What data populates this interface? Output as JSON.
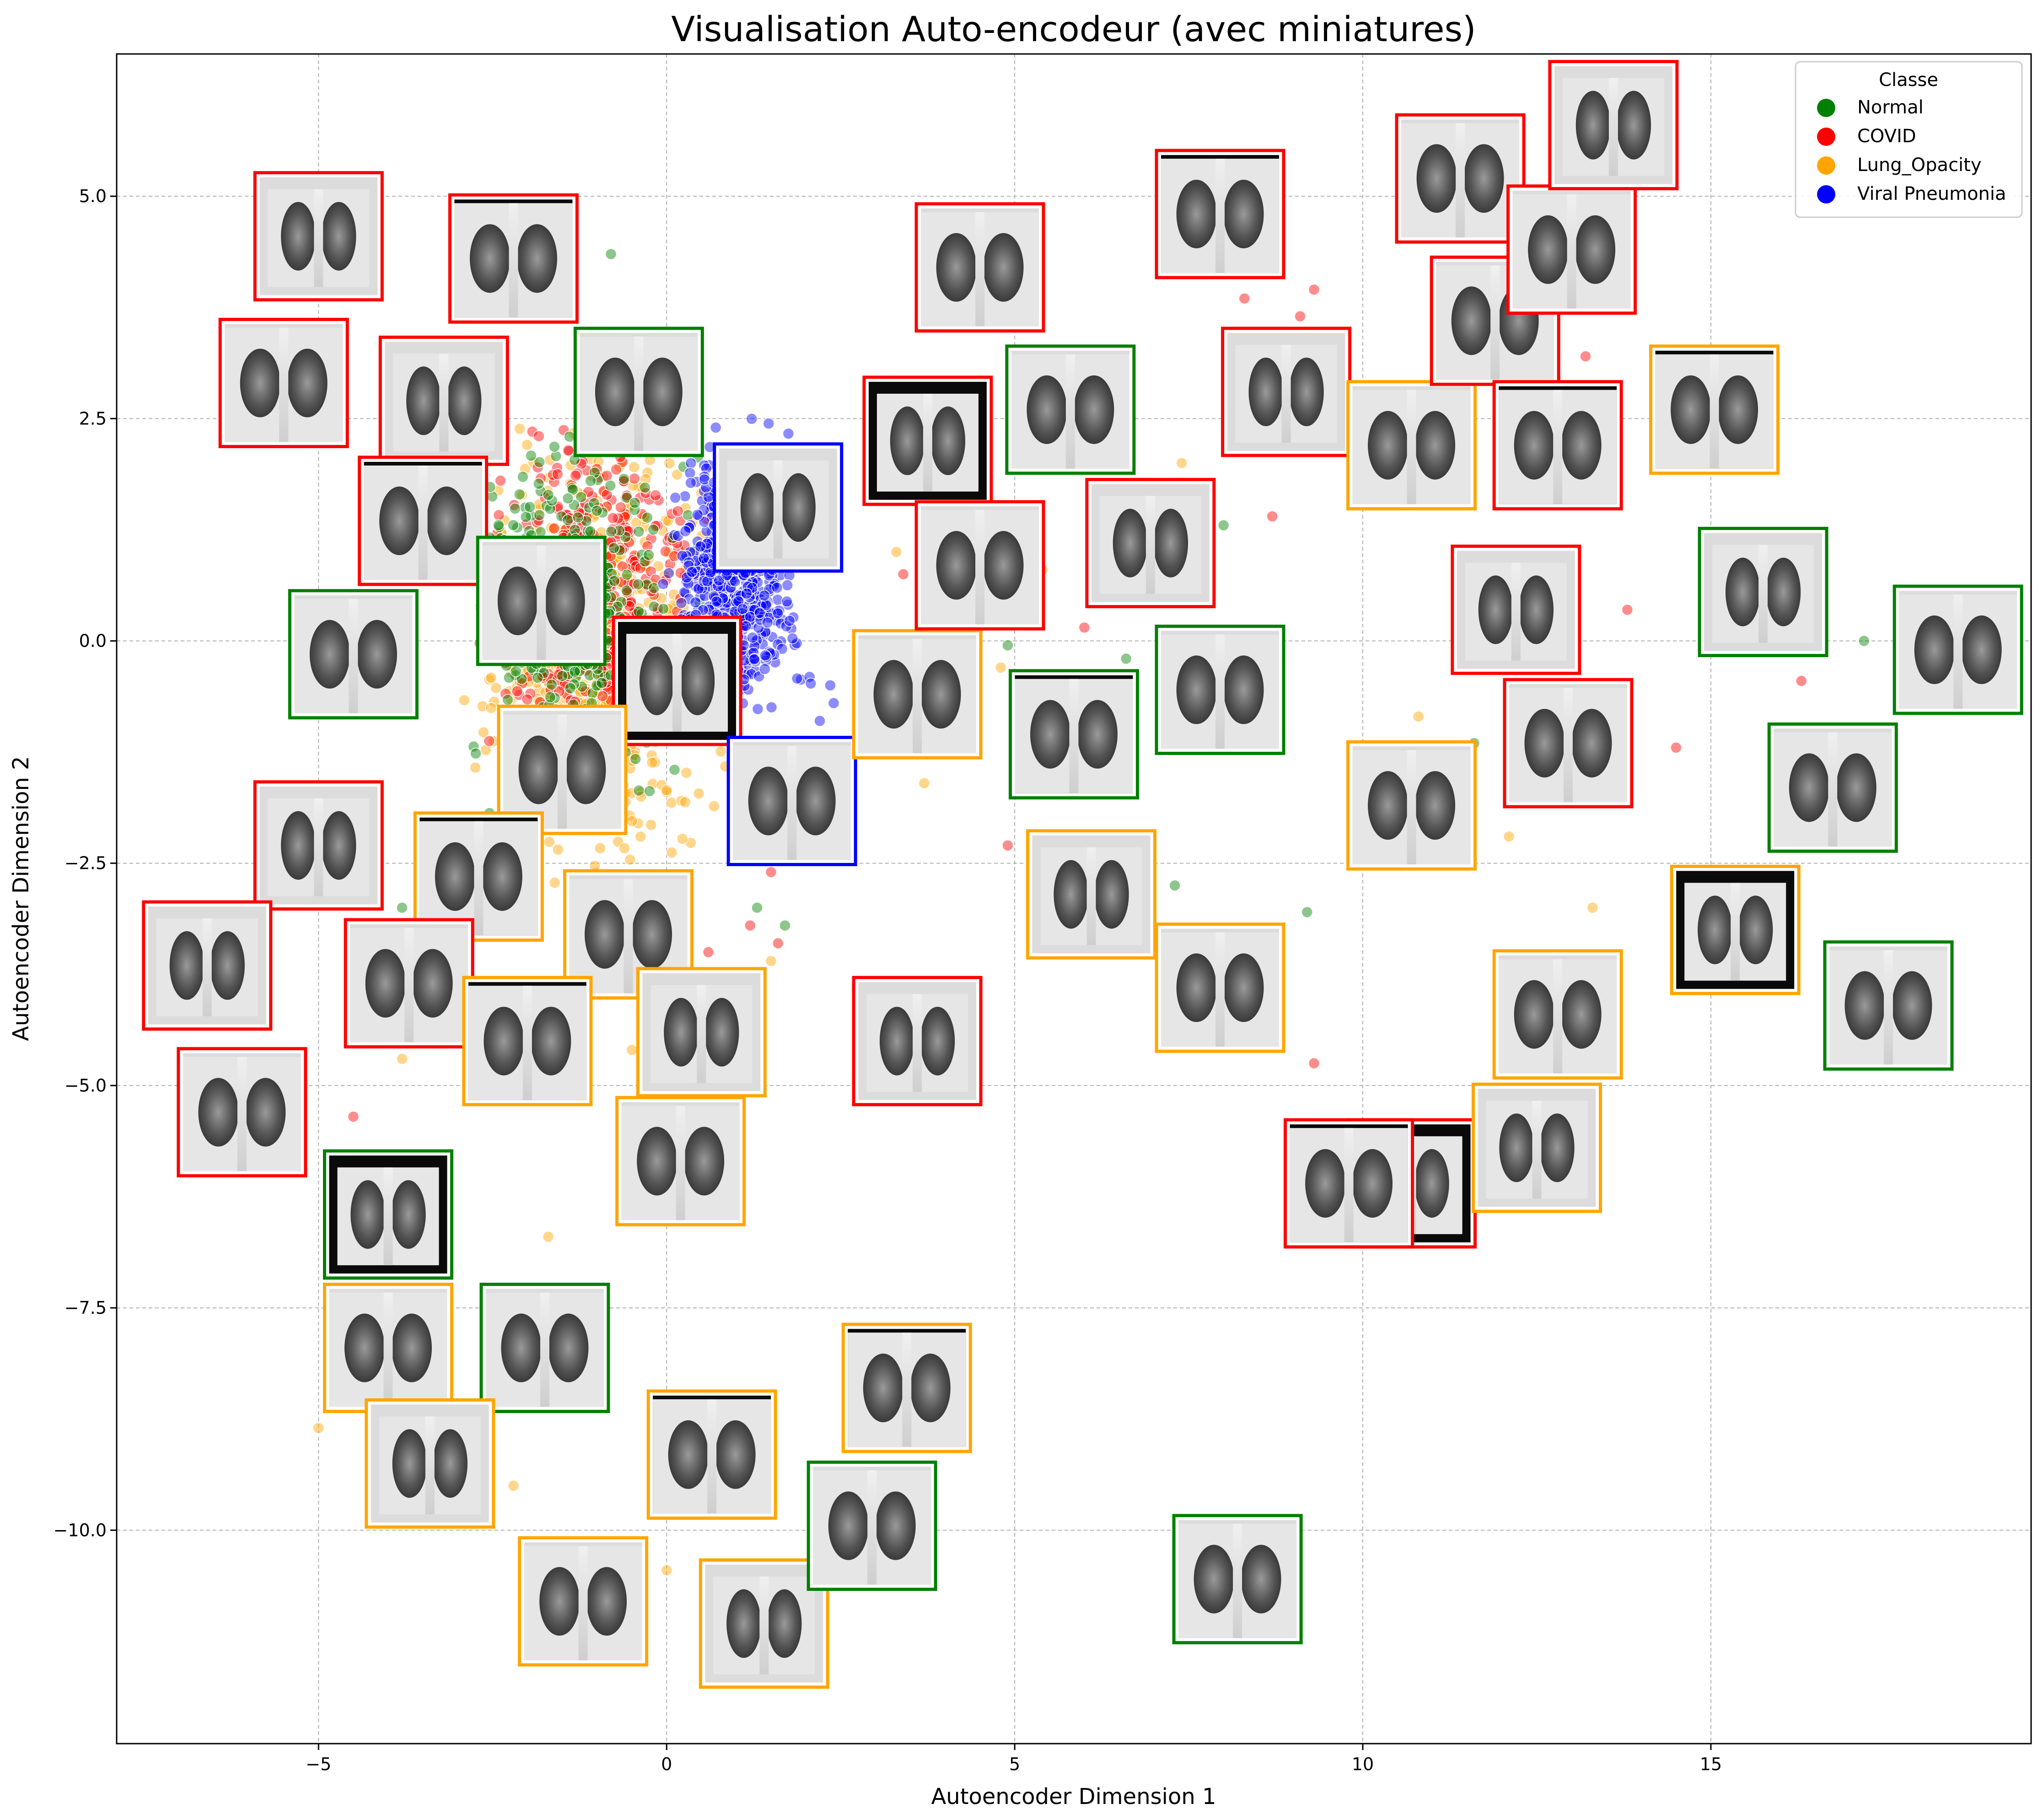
{
  "chart_data": {
    "type": "scatter",
    "title": "Visualisation Auto-encodeur (avec miniatures)",
    "xlabel": "Autoencoder Dimension 1",
    "ylabel": "Autoencoder Dimension 2",
    "xlim": [
      -7.9,
      19.6
    ],
    "ylim": [
      -12.4,
      6.6
    ],
    "xticks": [
      -5,
      0,
      5,
      10,
      15
    ],
    "yticks": [
      -10.0,
      -7.5,
      -5.0,
      -2.5,
      0.0,
      2.5,
      5.0
    ],
    "xtick_labels": [
      "−5",
      "0",
      "5",
      "10",
      "15"
    ],
    "ytick_labels": [
      "−10.0",
      "−7.5",
      "−5.0",
      "−2.5",
      "0.0",
      "2.5",
      "5.0"
    ],
    "grid": true,
    "legend": {
      "title": "Classe",
      "position": "top-right",
      "entries": [
        {
          "name": "Normal",
          "color": "#008000"
        },
        {
          "name": "COVID",
          "color": "#ff0000"
        },
        {
          "name": "Lung_Opacity",
          "color": "#ffa500"
        },
        {
          "name": "Viral Pneumonia",
          "color": "#0000ff"
        }
      ]
    },
    "clusters": [
      {
        "class": "Lung_Opacity",
        "x_range": [
          -3.2,
          1.2
        ],
        "y_range": [
          -3.2,
          2.8
        ],
        "count": 700
      },
      {
        "class": "COVID",
        "x_range": [
          -3.0,
          1.0
        ],
        "y_range": [
          -1.8,
          3.0
        ],
        "count": 450
      },
      {
        "class": "Normal",
        "x_range": [
          -3.3,
          0.8
        ],
        "y_range": [
          -2.5,
          3.0
        ],
        "count": 350
      },
      {
        "class": "Viral Pneumonia",
        "x_range": [
          -0.2,
          2.2
        ],
        "y_range": [
          -1.2,
          2.7
        ],
        "count": 600
      }
    ],
    "sparse_points": [
      {
        "class": "COVID",
        "x": 8.3,
        "y": 3.85
      },
      {
        "class": "COVID",
        "x": 9.3,
        "y": 3.95
      },
      {
        "class": "COVID",
        "x": 9.1,
        "y": 3.65
      },
      {
        "class": "COVID",
        "x": 13.2,
        "y": 3.2
      },
      {
        "class": "COVID",
        "x": 8.7,
        "y": 1.4
      },
      {
        "class": "COVID",
        "x": 13.8,
        "y": 0.35
      },
      {
        "class": "COVID",
        "x": 16.3,
        "y": -0.45
      },
      {
        "class": "COVID",
        "x": 14.5,
        "y": -1.2
      },
      {
        "class": "COVID",
        "x": 6.0,
        "y": -1.2
      },
      {
        "class": "COVID",
        "x": 4.9,
        "y": -2.3
      },
      {
        "class": "COVID",
        "x": 9.3,
        "y": -4.75
      },
      {
        "class": "COVID",
        "x": -4.5,
        "y": -5.35
      },
      {
        "class": "COVID",
        "x": 4.3,
        "y": 0.2
      },
      {
        "class": "COVID",
        "x": 3.1,
        "y": 1.6
      },
      {
        "class": "COVID",
        "x": 5.1,
        "y": 0.25
      },
      {
        "class": "COVID",
        "x": 6.0,
        "y": 0.15
      },
      {
        "class": "COVID",
        "x": 4.0,
        "y": 1.0
      },
      {
        "class": "COVID",
        "x": 3.4,
        "y": 0.75
      },
      {
        "class": "COVID",
        "x": 1.5,
        "y": -2.6
      },
      {
        "class": "COVID",
        "x": 1.2,
        "y": -3.2
      },
      {
        "class": "COVID",
        "x": 1.6,
        "y": -3.4
      },
      {
        "class": "COVID",
        "x": 0.6,
        "y": -3.5
      },
      {
        "class": "Normal",
        "x": 8.0,
        "y": 1.3
      },
      {
        "class": "Normal",
        "x": 17.2,
        "y": 0.0
      },
      {
        "class": "Normal",
        "x": 11.6,
        "y": -1.15
      },
      {
        "class": "Normal",
        "x": 6.6,
        "y": -0.2
      },
      {
        "class": "Normal",
        "x": 7.3,
        "y": -2.75
      },
      {
        "class": "Normal",
        "x": 9.2,
        "y": -3.05
      },
      {
        "class": "Normal",
        "x": 4.9,
        "y": -0.05
      },
      {
        "class": "Normal",
        "x": 5.0,
        "y": -1.2
      },
      {
        "class": "Normal",
        "x": 1.3,
        "y": -3.0
      },
      {
        "class": "Normal",
        "x": 1.7,
        "y": -3.2
      },
      {
        "class": "Normal",
        "x": -6.1,
        "y": -3.2
      },
      {
        "class": "Normal",
        "x": -3.8,
        "y": -3.0
      },
      {
        "class": "Normal",
        "x": -0.8,
        "y": 4.35
      },
      {
        "class": "Lung_Opacity",
        "x": 3.3,
        "y": 1.0
      },
      {
        "class": "Lung_Opacity",
        "x": 5.4,
        "y": 0.8
      },
      {
        "class": "Lung_Opacity",
        "x": 5.2,
        "y": 0.35
      },
      {
        "class": "Lung_Opacity",
        "x": 7.4,
        "y": 2.0
      },
      {
        "class": "Lung_Opacity",
        "x": 10.8,
        "y": -0.85
      },
      {
        "class": "Lung_Opacity",
        "x": 12.1,
        "y": -2.2
      },
      {
        "class": "Lung_Opacity",
        "x": 13.3,
        "y": -3.0
      },
      {
        "class": "Lung_Opacity",
        "x": 3.7,
        "y": -1.6
      },
      {
        "class": "Lung_Opacity",
        "x": 4.8,
        "y": -0.3
      },
      {
        "class": "Lung_Opacity",
        "x": -0.5,
        "y": -4.6
      },
      {
        "class": "Lung_Opacity",
        "x": -0.2,
        "y": -4.55
      },
      {
        "class": "Lung_Opacity",
        "x": -3.8,
        "y": -4.7
      },
      {
        "class": "Lung_Opacity",
        "x": -5.0,
        "y": -8.85
      },
      {
        "class": "Lung_Opacity",
        "x": -2.2,
        "y": -9.5
      },
      {
        "class": "Lung_Opacity",
        "x": 0.0,
        "y": -10.45
      },
      {
        "class": "Lung_Opacity",
        "x": -0.7,
        "y": -11.4
      },
      {
        "class": "Lung_Opacity",
        "x": -1.7,
        "y": -6.7
      },
      {
        "class": "Lung_Opacity",
        "x": 1.5,
        "y": -3.6
      },
      {
        "class": "Viral Pneumonia",
        "x": 2.4,
        "y": -0.7
      },
      {
        "class": "Viral Pneumonia",
        "x": 2.2,
        "y": -0.9
      },
      {
        "class": "Viral Pneumonia",
        "x": 2.35,
        "y": -0.5
      }
    ],
    "thumbnails": [
      {
        "class": "COVID",
        "x": -5.0,
        "y": 4.55
      },
      {
        "class": "COVID",
        "x": -2.2,
        "y": 4.3
      },
      {
        "class": "COVID",
        "x": -5.5,
        "y": 2.9
      },
      {
        "class": "COVID",
        "x": -3.2,
        "y": 2.7
      },
      {
        "class": "Normal",
        "x": -0.4,
        "y": 2.8
      },
      {
        "class": "COVID",
        "x": -3.5,
        "y": 1.35
      },
      {
        "class": "Viral Pneumonia",
        "x": 1.6,
        "y": 1.5
      },
      {
        "class": "Normal",
        "x": -1.8,
        "y": 0.45
      },
      {
        "class": "Normal",
        "x": -4.5,
        "y": -0.15
      },
      {
        "class": "COVID",
        "x": 0.15,
        "y": -0.45
      },
      {
        "class": "Lung_Opacity",
        "x": -1.5,
        "y": -1.45
      },
      {
        "class": "Viral Pneumonia",
        "x": 1.8,
        "y": -1.8
      },
      {
        "class": "COVID",
        "x": -5.0,
        "y": -2.3
      },
      {
        "class": "Lung_Opacity",
        "x": -2.7,
        "y": -2.65
      },
      {
        "class": "Lung_Opacity",
        "x": -0.55,
        "y": -3.3
      },
      {
        "class": "COVID",
        "x": -6.6,
        "y": -3.65
      },
      {
        "class": "COVID",
        "x": -3.7,
        "y": -3.85
      },
      {
        "class": "Lung_Opacity",
        "x": -2.0,
        "y": -4.5
      },
      {
        "class": "Lung_Opacity",
        "x": 0.5,
        "y": -4.4
      },
      {
        "class": "COVID",
        "x": -6.1,
        "y": -5.3
      },
      {
        "class": "Lung_Opacity",
        "x": 0.2,
        "y": -5.85
      },
      {
        "class": "Normal",
        "x": -4.0,
        "y": -6.45
      },
      {
        "class": "Lung_Opacity",
        "x": -4.0,
        "y": -7.95
      },
      {
        "class": "Normal",
        "x": -1.75,
        "y": -7.95
      },
      {
        "class": "Lung_Opacity",
        "x": -3.4,
        "y": -9.25
      },
      {
        "class": "Lung_Opacity",
        "x": 0.65,
        "y": -9.15
      },
      {
        "class": "Lung_Opacity",
        "x": -1.2,
        "y": -10.8
      },
      {
        "class": "Lung_Opacity",
        "x": 1.4,
        "y": -11.05
      },
      {
        "class": "Normal",
        "x": 2.95,
        "y": -9.95
      },
      {
        "class": "Lung_Opacity",
        "x": 3.45,
        "y": -8.4
      },
      {
        "class": "COVID",
        "x": 3.6,
        "y": -4.5
      },
      {
        "class": "Lung_Opacity",
        "x": 3.6,
        "y": -0.6
      },
      {
        "class": "COVID",
        "x": 4.5,
        "y": 4.2
      },
      {
        "class": "COVID",
        "x": 3.75,
        "y": 2.25
      },
      {
        "class": "COVID",
        "x": 4.5,
        "y": 0.85
      },
      {
        "class": "Normal",
        "x": 5.8,
        "y": 2.6
      },
      {
        "class": "COVID",
        "x": 6.95,
        "y": 1.1
      },
      {
        "class": "Normal",
        "x": 5.85,
        "y": -1.05
      },
      {
        "class": "Normal",
        "x": 7.95,
        "y": -0.55
      },
      {
        "class": "Lung_Opacity",
        "x": 6.1,
        "y": -2.85
      },
      {
        "class": "Lung_Opacity",
        "x": 7.95,
        "y": -3.9
      },
      {
        "class": "COVID",
        "x": 7.95,
        "y": 4.8
      },
      {
        "class": "COVID",
        "x": 8.9,
        "y": 2.8
      },
      {
        "class": "Lung_Opacity",
        "x": 10.7,
        "y": 2.2
      },
      {
        "class": "Lung_Opacity",
        "x": 10.7,
        "y": -1.85
      },
      {
        "class": "COVID",
        "x": 10.7,
        "y": -6.1
      },
      {
        "class": "COVID",
        "x": 11.4,
        "y": 5.2
      },
      {
        "class": "COVID",
        "x": 11.9,
        "y": 3.6
      },
      {
        "class": "COVID",
        "x": 12.2,
        "y": 0.35
      },
      {
        "class": "COVID",
        "x": 12.8,
        "y": 2.2
      },
      {
        "class": "COVID",
        "x": 13.0,
        "y": 4.4
      },
      {
        "class": "COVID",
        "x": 13.6,
        "y": 5.8
      },
      {
        "class": "COVID",
        "x": 12.95,
        "y": -1.15
      },
      {
        "class": "Lung_Opacity",
        "x": 15.05,
        "y": 2.6
      },
      {
        "class": "Normal",
        "x": 15.75,
        "y": 0.55
      },
      {
        "class": "Normal",
        "x": 18.55,
        "y": -0.1
      },
      {
        "class": "Normal",
        "x": 16.75,
        "y": -1.65
      },
      {
        "class": "Lung_Opacity",
        "x": 15.35,
        "y": -3.25
      },
      {
        "class": "Normal",
        "x": 17.55,
        "y": -4.1
      },
      {
        "class": "Lung_Opacity",
        "x": 12.8,
        "y": -4.2
      },
      {
        "class": "Lung_Opacity",
        "x": 12.5,
        "y": -5.7
      },
      {
        "class": "COVID",
        "x": 9.8,
        "y": -6.1
      },
      {
        "class": "Normal",
        "x": 8.2,
        "y": -10.55
      }
    ]
  }
}
